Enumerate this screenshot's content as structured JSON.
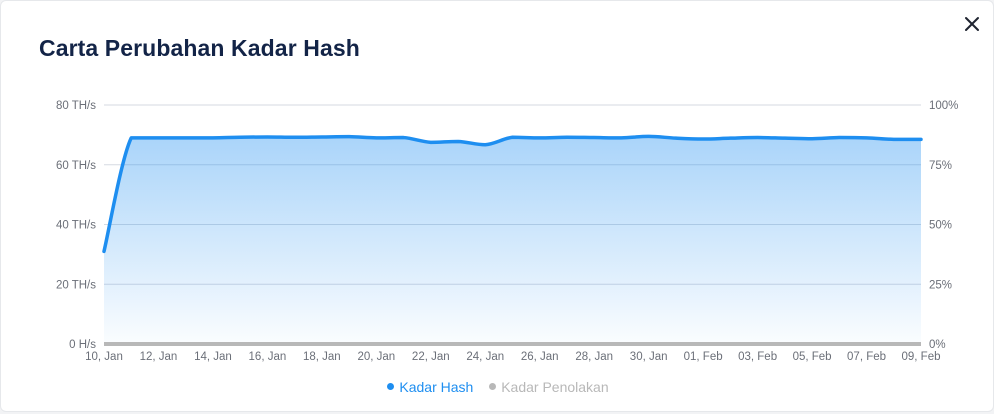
{
  "modal": {
    "title": "Carta Perubahan Kadar Hash",
    "close_icon": "close-icon"
  },
  "colors": {
    "hash_rate": "#1e8ef0",
    "rejection": "#b8b8b8",
    "grid": "#d5dae2",
    "title": "#132447"
  },
  "chart_data": {
    "type": "area",
    "x": [
      "10, Jan",
      "11, Jan",
      "12, Jan",
      "13, Jan",
      "14, Jan",
      "15, Jan",
      "16, Jan",
      "17, Jan",
      "18, Jan",
      "19, Jan",
      "20, Jan",
      "21, Jan",
      "22, Jan",
      "23, Jan",
      "24, Jan",
      "25, Jan",
      "26, Jan",
      "27, Jan",
      "28, Jan",
      "29, Jan",
      "30, Jan",
      "31, Jan",
      "01, Feb",
      "02, Feb",
      "03, Feb",
      "04, Feb",
      "05, Feb",
      "06, Feb",
      "07, Feb",
      "08, Feb",
      "09, Feb"
    ],
    "x_tick_labels": [
      "10, Jan",
      "12, Jan",
      "14, Jan",
      "16, Jan",
      "18, Jan",
      "20, Jan",
      "22, Jan",
      "24, Jan",
      "26, Jan",
      "28, Jan",
      "30, Jan",
      "01, Feb",
      "03, Feb",
      "05, Feb",
      "07, Feb",
      "09, Feb"
    ],
    "y_left_ticks": [
      "0 H/s",
      "20 TH/s",
      "40 TH/s",
      "60 TH/s",
      "80 TH/s"
    ],
    "y_right_ticks": [
      "0%",
      "25%",
      "50%",
      "75%",
      "100%"
    ],
    "ylim": [
      0,
      80
    ],
    "y2lim": [
      0,
      100
    ],
    "grid": true,
    "legend_position": "bottom-center",
    "series": [
      {
        "name": "Kadar Hash",
        "axis": "left",
        "values": [
          31,
          69,
          69,
          69,
          69,
          69.2,
          69.3,
          69.2,
          69.3,
          69.4,
          69,
          69.1,
          67.5,
          67.8,
          66.7,
          69.2,
          69,
          69.2,
          69.1,
          69,
          69.5,
          68.9,
          68.6,
          68.9,
          69.1,
          68.9,
          68.7,
          69.1,
          69,
          68.5,
          68.5
        ]
      },
      {
        "name": "Kadar Penolakan",
        "axis": "right",
        "values": [
          0,
          0,
          0,
          0,
          0,
          0,
          0,
          0,
          0,
          0,
          0,
          0,
          0,
          0,
          0,
          0,
          0,
          0,
          0,
          0,
          0,
          0,
          0,
          0,
          0,
          0,
          0,
          0,
          0,
          0,
          0
        ]
      }
    ]
  }
}
